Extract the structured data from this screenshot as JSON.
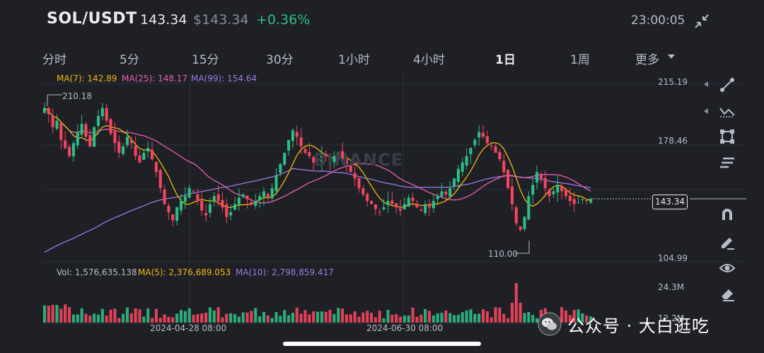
{
  "header": {
    "pair": "SOL/USDT",
    "last_price": "143.34",
    "usd_price": "$143.34",
    "change": "+0.36%",
    "clock": "23:00:05",
    "collapse_icon": "collapse-icon"
  },
  "intervals": [
    {
      "label": "分时"
    },
    {
      "label": "5分"
    },
    {
      "label": "15分"
    },
    {
      "label": "30分"
    },
    {
      "label": "1小时"
    },
    {
      "label": "4小时"
    },
    {
      "label": "1日",
      "active": true
    },
    {
      "label": "1周"
    },
    {
      "label": "更多"
    }
  ],
  "ma": {
    "ma7": "MA(7): 142.89",
    "ma25": "MA(25): 148.17",
    "ma99": "MA(99): 154.64"
  },
  "volume_legend": {
    "vol": "Vol: 1,576,635.138",
    "ma5": "MA(5): 2,376,689.053",
    "ma10": "MA(10): 2,798,859.417"
  },
  "price_axis": [
    "215.19",
    "178.46",
    "143.34",
    "104.99"
  ],
  "volume_axis": [
    "24.3M",
    "12.2M"
  ],
  "markers": {
    "high": "210.18",
    "low": "110.00"
  },
  "time_axis": [
    "2024-04-28 08:00",
    "2024-06-30 08:00"
  ],
  "watermark": "BINANCE",
  "wechat": {
    "text": "公众号 · 大白逛吃"
  },
  "colors": {
    "up": "#2ebd85",
    "down": "#f6465d",
    "ma7": "#f0b90b",
    "ma25": "#e85fb0",
    "ma99": "#9b7ae0"
  },
  "tools": [
    "trend-line-icon",
    "multi-line-icon",
    "shape-icon",
    "indicator-icon",
    "magnet-icon",
    "pencil-icon",
    "eye-icon",
    "eraser-icon"
  ],
  "chart_data": {
    "type": "candlestick",
    "symbol": "SOL/USDT",
    "interval": "1日",
    "ylim": [
      104.99,
      215.19
    ],
    "yticks": [
      215.19,
      178.46,
      104.99
    ],
    "current_price": 143.34,
    "high_marker": 210.18,
    "low_marker": 110.0,
    "xticks": [
      "2024-04-28 08:00",
      "2024-06-30 08:00"
    ],
    "close_path": [
      200,
      196,
      188,
      192,
      180,
      175,
      170,
      178,
      185,
      190,
      182,
      176,
      188,
      195,
      200,
      192,
      184,
      178,
      172,
      176,
      182,
      178,
      170,
      166,
      172,
      175,
      168,
      160,
      150,
      140,
      135,
      130,
      138,
      142,
      145,
      150,
      148,
      142,
      136,
      133,
      140,
      145,
      142,
      138,
      132,
      135,
      140,
      144,
      146,
      143,
      140,
      142,
      145,
      148,
      144,
      150,
      158,
      165,
      172,
      180,
      186,
      182,
      176,
      172,
      170,
      166,
      168,
      172,
      170,
      166,
      170,
      172,
      168,
      165,
      160,
      156,
      150,
      146,
      142,
      140,
      137,
      135,
      138,
      142,
      140,
      138,
      136,
      140,
      144,
      142,
      138,
      136,
      140,
      138,
      142,
      145,
      148,
      146,
      150,
      156,
      162,
      166,
      170,
      175,
      180,
      185,
      182,
      178,
      176,
      172,
      168,
      160,
      150,
      140,
      128,
      124,
      132,
      145,
      152,
      160,
      156,
      150,
      145,
      148,
      152,
      148,
      145,
      142,
      140,
      141,
      143,
      142,
      143.34
    ],
    "volume_peak": 24.3
  }
}
